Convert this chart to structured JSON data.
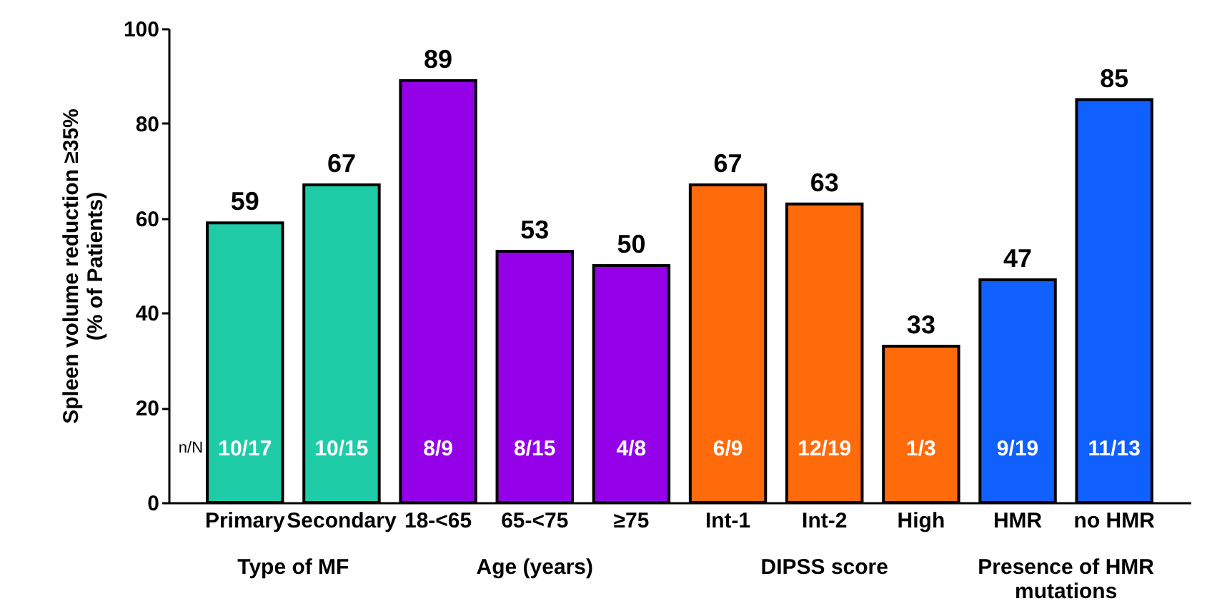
{
  "chart_data": {
    "type": "bar",
    "categories": [
      "Primary",
      "Secondary",
      "18-<65",
      "65-<75",
      "≥75",
      "Int-1",
      "Int-2",
      "High",
      "HMR",
      "no HMR"
    ],
    "values": [
      59,
      67,
      89,
      53,
      50,
      67,
      63,
      33,
      47,
      85
    ],
    "colors": [
      "#1fcca8",
      "#1fcca8",
      "#9400e8",
      "#9400e8",
      "#9400e8",
      "#ff6a0a",
      "#ff6a0a",
      "#ff6a0a",
      "#1060ff",
      "#1060ff"
    ],
    "data_labels": true,
    "ylabel": "Spleen volume reduction ≥35%\n(% of Patients)",
    "ylim": [
      0,
      100
    ],
    "yticks": [
      0,
      20,
      40,
      60,
      80,
      100
    ],
    "grid": false,
    "annotations": [
      "Type of MF",
      "Age (years)",
      "DIPSS score",
      "Presence of HMR\nmutations",
      "n/N",
      "10/17",
      "10/15",
      "8/9",
      "8/15",
      "4/8",
      "6/9",
      "12/19",
      "1/3",
      "9/19",
      "11/13"
    ]
  }
}
